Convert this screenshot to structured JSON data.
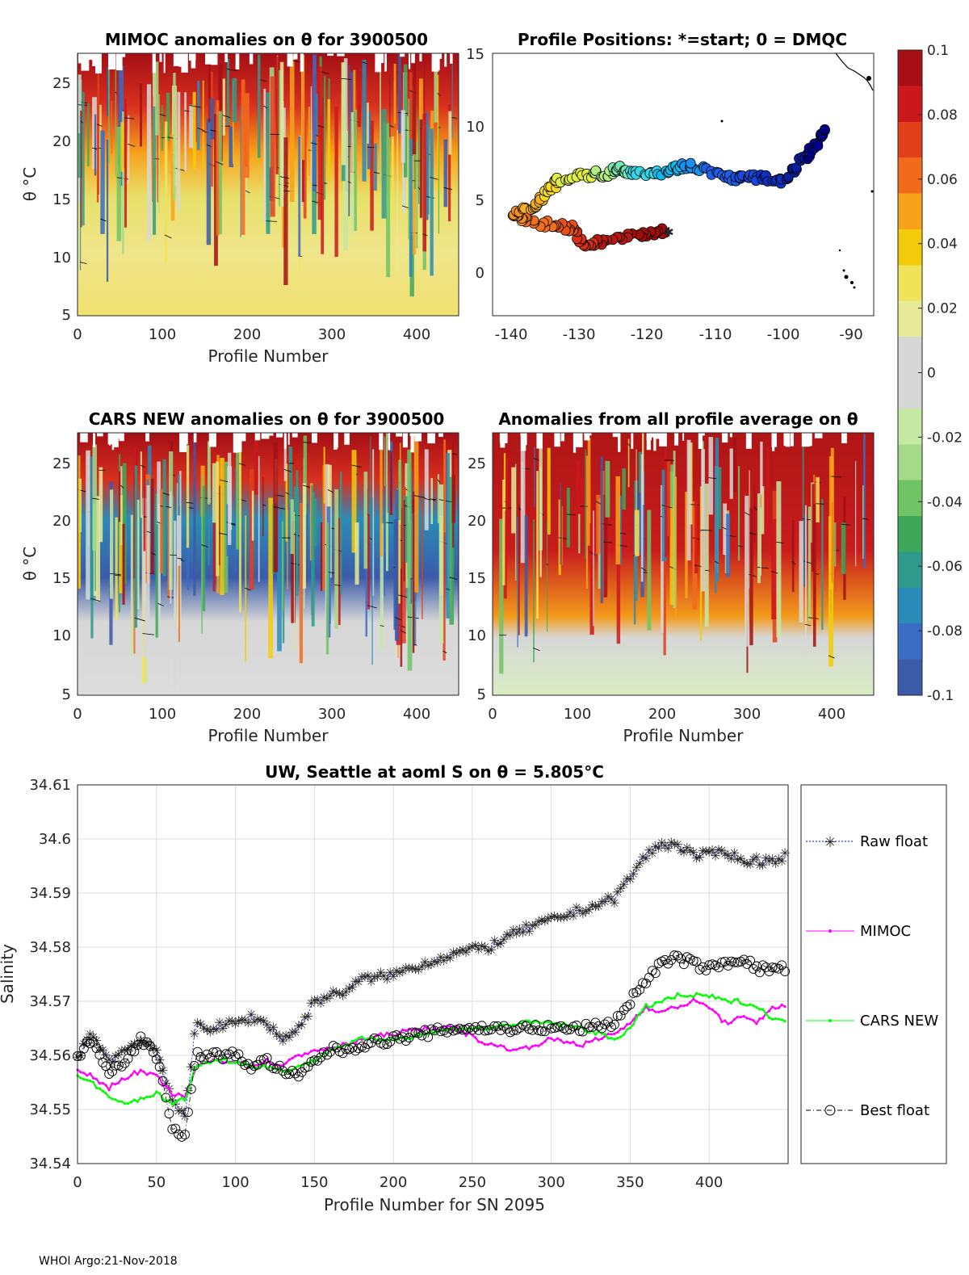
{
  "footer": "WHOI Argo:21-Nov-2018",
  "colors": {
    "raw": "#0000ff",
    "mimoc": "#ff00ff",
    "cars": "#00ff00",
    "best": "#000000",
    "grid": "#dcdcdc"
  },
  "colorbar": {
    "ticks": [
      "0.1",
      "0.08",
      "0.06",
      "0.04",
      "0.02",
      "0",
      "-0.02",
      "-0.04",
      "-0.06",
      "-0.08",
      "-0.1"
    ],
    "colors": [
      "#a50f15",
      "#cb181d",
      "#e2401c",
      "#f26b1d",
      "#f7a21b",
      "#f2cc0a",
      "#efe35a",
      "#e8ea9a",
      "#d7d7d7",
      "#d7d7d7",
      "#c6e8a5",
      "#a5da8b",
      "#70c466",
      "#3fa75a",
      "#2f9a8c",
      "#2b8bb8",
      "#3a6cc4",
      "#3b5ba8"
    ]
  },
  "panels": {
    "mimoc": {
      "title": "MIMOC anomalies on θ  for 3900500",
      "ylabel": "θ °C",
      "xlabel": "Profile Number",
      "xticks": [
        "0",
        "100",
        "200",
        "300",
        "400"
      ],
      "yticks": [
        "25",
        "20",
        "15",
        "10",
        "5"
      ]
    },
    "positions": {
      "title": "Profile Positions: *=start; 0 = DMQC",
      "xticks": [
        "-140",
        "-130",
        "-120",
        "-110",
        "-100",
        "-90"
      ],
      "yticks": [
        "15",
        "10",
        "5",
        "0"
      ]
    },
    "cars": {
      "title": "CARS NEW anomalies on θ for 3900500",
      "ylabel": "θ °C",
      "xlabel": "Profile Number",
      "xticks": [
        "0",
        "100",
        "200",
        "300",
        "400"
      ],
      "yticks": [
        "25",
        "20",
        "15",
        "10",
        "5"
      ]
    },
    "avg": {
      "title": "Anomalies from all profile average on θ",
      "xlabel": "Profile Number",
      "xticks": [
        "0",
        "100",
        "200",
        "300",
        "400"
      ],
      "yticks": [
        "25",
        "20",
        "15",
        "10",
        "5"
      ]
    }
  },
  "chart_data": [
    {
      "type": "heatmap",
      "title": "MIMOC anomalies on θ  for 3900500",
      "xlabel": "Profile Number",
      "ylabel": "θ °C",
      "xlim": [
        0,
        450
      ],
      "ylim": [
        5,
        27.5
      ],
      "clim": [
        -0.1,
        0.1
      ]
    },
    {
      "type": "scatter",
      "title": "Profile Positions: *=start; 0 = DMQC",
      "xlim": [
        -143,
        -86
      ],
      "ylim": [
        -3,
        15
      ],
      "track": [
        [
          -117,
          2.8
        ],
        [
          -121,
          2.5
        ],
        [
          -126,
          2.2
        ],
        [
          -129,
          1.8
        ],
        [
          -131,
          3
        ],
        [
          -134,
          3.2
        ],
        [
          -138,
          3.5
        ],
        [
          -140,
          3.9
        ],
        [
          -137,
          4.5
        ],
        [
          -135,
          5.5
        ],
        [
          -133,
          6.3
        ],
        [
          -129,
          6.7
        ],
        [
          -126,
          6.7
        ],
        [
          -124,
          7.1
        ],
        [
          -122,
          6.9
        ],
        [
          -118,
          6.8
        ],
        [
          -115,
          7.2
        ],
        [
          -113,
          7.3
        ],
        [
          -109,
          6.6
        ],
        [
          -106,
          6.4
        ],
        [
          -103,
          6.5
        ],
        [
          -100,
          6.2
        ],
        [
          -97,
          7.5
        ],
        [
          -95,
          8.5
        ],
        [
          -93,
          9.8
        ]
      ]
    },
    {
      "type": "heatmap",
      "title": "CARS NEW anomalies on θ for 3900500",
      "xlabel": "Profile Number",
      "ylabel": "θ °C",
      "xlim": [
        0,
        450
      ],
      "ylim": [
        5,
        27.5
      ],
      "clim": [
        -0.1,
        0.1
      ]
    },
    {
      "type": "heatmap",
      "title": "Anomalies from all profile average on θ",
      "xlabel": "Profile Number",
      "xlim": [
        0,
        450
      ],
      "ylim": [
        5,
        27.5
      ],
      "clim": [
        -0.1,
        0.1
      ]
    },
    {
      "type": "line",
      "title": "UW, Seattle at aoml S on θ = 5.805°C",
      "xlabel": "Profile Number for SN 2095",
      "ylabel": "Salinity",
      "xlim": [
        0,
        450
      ],
      "ylim": [
        34.54,
        34.61
      ],
      "xticks": [
        "0",
        "50",
        "100",
        "150",
        "200",
        "250",
        "300",
        "350",
        "400"
      ],
      "yticks": [
        "34.61",
        "34.6",
        "34.59",
        "34.58",
        "34.57",
        "34.56",
        "34.55",
        "34.54"
      ],
      "x": [
        0,
        10,
        20,
        30,
        40,
        50,
        60,
        68,
        75,
        85,
        100,
        110,
        120,
        130,
        140,
        150,
        160,
        170,
        180,
        200,
        220,
        240,
        260,
        280,
        300,
        320,
        340,
        350,
        360,
        370,
        380,
        390,
        400,
        410,
        420,
        430,
        440,
        448
      ],
      "series": [
        {
          "name": "Raw float",
          "values": [
            34.56,
            34.564,
            34.559,
            34.561,
            34.563,
            34.561,
            34.552,
            34.548,
            34.566,
            34.565,
            34.566,
            34.567,
            34.566,
            34.563,
            34.565,
            34.57,
            34.571,
            34.572,
            34.574,
            34.575,
            34.577,
            34.579,
            34.58,
            34.583,
            34.585,
            34.587,
            34.589,
            34.593,
            34.597,
            34.599,
            34.599,
            34.597,
            34.597,
            34.598,
            34.596,
            34.596,
            34.596,
            34.597
          ]
        },
        {
          "name": "MIMOC",
          "values": [
            34.557,
            34.556,
            34.554,
            34.556,
            34.557,
            34.556,
            34.553,
            34.552,
            34.558,
            34.559,
            34.559,
            34.558,
            34.559,
            34.558,
            34.56,
            34.561,
            34.561,
            34.562,
            34.563,
            34.564,
            34.565,
            34.565,
            34.562,
            34.561,
            34.563,
            34.562,
            34.564,
            34.566,
            34.569,
            34.568,
            34.569,
            34.57,
            34.569,
            34.566,
            34.567,
            34.566,
            34.569,
            34.569
          ]
        },
        {
          "name": "CARS NEW",
          "values": [
            34.556,
            34.555,
            34.552,
            34.551,
            34.552,
            34.553,
            34.551,
            34.552,
            34.558,
            34.559,
            34.559,
            34.558,
            34.558,
            34.557,
            34.558,
            34.559,
            34.561,
            34.562,
            34.563,
            34.563,
            34.564,
            34.565,
            34.565,
            34.566,
            34.566,
            34.565,
            34.563,
            34.565,
            34.569,
            34.57,
            34.571,
            34.571,
            34.571,
            34.57,
            34.57,
            34.569,
            34.567,
            34.566
          ]
        },
        {
          "name": "Best float",
          "values": [
            34.56,
            34.563,
            34.557,
            34.559,
            34.563,
            34.56,
            34.547,
            34.545,
            34.56,
            34.56,
            34.56,
            34.558,
            34.559,
            34.557,
            34.556,
            34.559,
            34.561,
            34.561,
            34.562,
            34.563,
            34.564,
            34.565,
            34.565,
            34.565,
            34.565,
            34.565,
            34.566,
            34.57,
            34.574,
            34.577,
            34.578,
            34.577,
            34.576,
            34.577,
            34.578,
            34.576,
            34.576,
            34.576
          ]
        }
      ]
    }
  ]
}
